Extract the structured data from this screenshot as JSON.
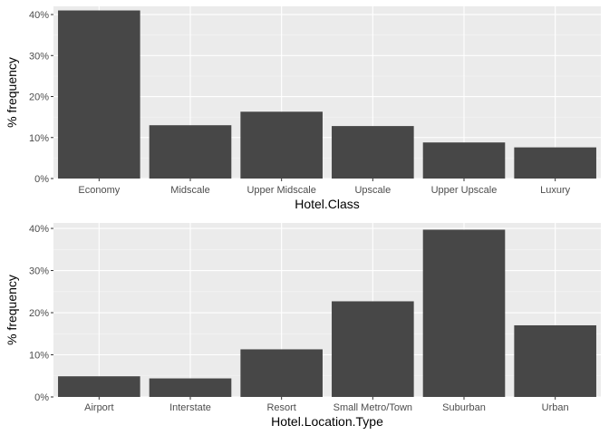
{
  "chart_data": [
    {
      "type": "bar",
      "xlabel": "Hotel.Class",
      "ylabel": "% frequency",
      "categories": [
        "Economy",
        "Midscale",
        "Upper Midscale",
        "Upscale",
        "Upper Upscale",
        "Luxury"
      ],
      "values": [
        41.0,
        13.0,
        16.3,
        12.8,
        8.8,
        7.6
      ],
      "ylim": [
        0,
        42
      ],
      "yticks": [
        0,
        10,
        20,
        30,
        40
      ],
      "ytick_labels": [
        "0%",
        "10%",
        "20%",
        "30%",
        "40%"
      ],
      "grid": true,
      "bar_color": "#474747",
      "panel_color": "#ebebeb"
    },
    {
      "type": "bar",
      "xlabel": "Hotel.Location.Type",
      "ylabel": "% frequency",
      "categories": [
        "Airport",
        "Interstate",
        "Resort",
        "Small Metro/Town",
        "Suburban",
        "Urban"
      ],
      "values": [
        4.9,
        4.4,
        11.3,
        22.7,
        39.7,
        17.0
      ],
      "ylim": [
        0,
        41.3
      ],
      "yticks": [
        0,
        10,
        20,
        30,
        40
      ],
      "ytick_labels": [
        "0%",
        "10%",
        "20%",
        "30%",
        "40%"
      ],
      "grid": true,
      "bar_color": "#474747",
      "panel_color": "#ebebeb"
    }
  ]
}
